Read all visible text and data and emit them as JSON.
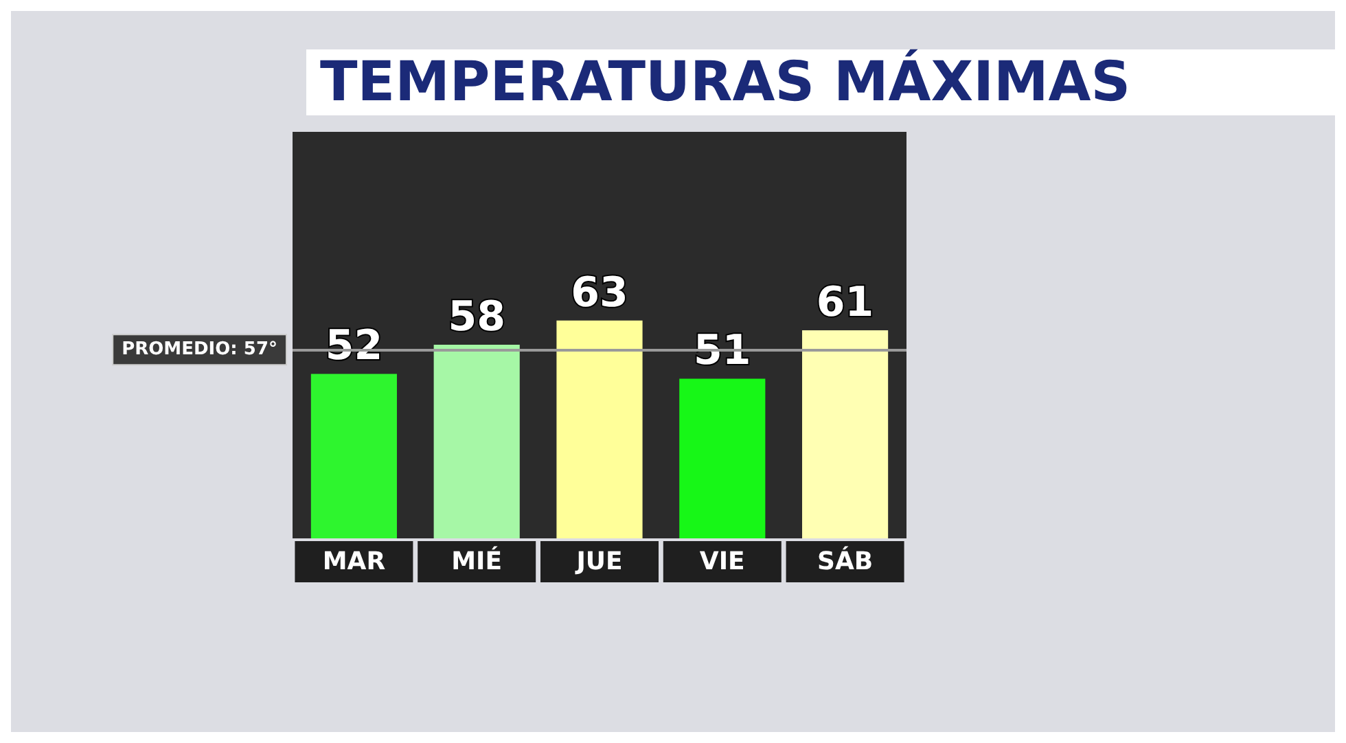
{
  "chart_data": {
    "type": "bar",
    "title": "TEMPERATURAS MÁXIMAS",
    "categories": [
      "MAR",
      "MIÉ",
      "JUE",
      "VIE",
      "SÁB"
    ],
    "values": [
      52,
      58,
      63,
      51,
      61
    ],
    "colors": [
      "#2ef52e",
      "#a6f7a6",
      "#ffff99",
      "#17f717",
      "#ffffb3"
    ],
    "ylim": [
      18,
      102
    ],
    "data_labels": true,
    "ref_lines": [
      {
        "axis": "y",
        "value": 57,
        "label": "PROMEDIO: 57°",
        "color": "#9a9a9a"
      }
    ]
  }
}
